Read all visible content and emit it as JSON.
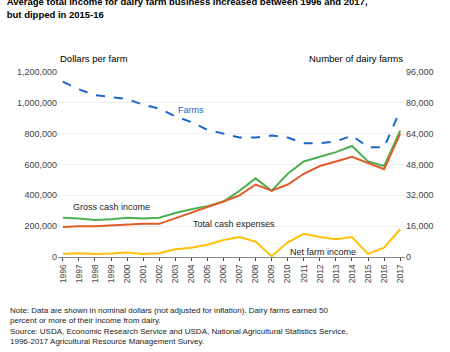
{
  "chart_data": {
    "type": "line",
    "title": "Average total income for dairy farm business increased between 1996 and 2017,",
    "subtitle": "but dipped in 2015-16",
    "ylabel": "Dollars per farm",
    "y2label": "Number of dairy farms",
    "x": [
      1996,
      1997,
      1998,
      1999,
      2000,
      2001,
      2002,
      2003,
      2004,
      2005,
      2006,
      2007,
      2008,
      2009,
      2010,
      2011,
      2012,
      2013,
      2014,
      2015,
      2016,
      2017
    ],
    "series": [
      {
        "name": "Gross cash income",
        "color": "#4CAF50",
        "line_style": "solid",
        "values": [
          255000,
          250000,
          240000,
          245000,
          255000,
          250000,
          255000,
          285000,
          310000,
          330000,
          360000,
          430000,
          510000,
          430000,
          540000,
          620000,
          650000,
          680000,
          720000,
          620000,
          590000,
          820000
        ]
      },
      {
        "name": "Total cash expenses",
        "color": "#E05C2A",
        "line_style": "solid",
        "values": [
          195000,
          200000,
          200000,
          205000,
          210000,
          215000,
          215000,
          250000,
          285000,
          320000,
          360000,
          400000,
          470000,
          430000,
          470000,
          540000,
          590000,
          620000,
          650000,
          610000,
          570000,
          800000
        ]
      },
      {
        "name": "Net farm income",
        "color": "#FFC107",
        "line_style": "solid",
        "values": [
          20000,
          25000,
          20000,
          22000,
          30000,
          20000,
          25000,
          50000,
          60000,
          80000,
          110000,
          130000,
          100000,
          5000,
          95000,
          150000,
          130000,
          115000,
          130000,
          20000,
          60000,
          180000
        ]
      },
      {
        "name": "Farms",
        "color": "#1A66CC",
        "line_style": "dashed",
        "axis": "y2",
        "values": [
          91000,
          87000,
          84000,
          83000,
          82000,
          79000,
          77000,
          73000,
          70000,
          66000,
          64000,
          62000,
          62000,
          63000,
          62000,
          59000,
          59000,
          60000,
          63000,
          57000,
          57000,
          76000
        ]
      }
    ],
    "xlim": [
      1995.7,
      2017.3
    ],
    "xticks": [
      1996,
      1997,
      1998,
      1999,
      2000,
      2001,
      2002,
      2003,
      2004,
      2005,
      2006,
      2007,
      2008,
      2009,
      2010,
      2011,
      2012,
      2013,
      2014,
      2015,
      2016,
      2017
    ],
    "ylim": [
      0,
      1200000
    ],
    "yticks": [
      0,
      {
        "value": 200000,
        "label": "200,000"
      },
      {
        "value": 400000,
        "label": "400,000"
      },
      {
        "value": 600000,
        "label": "600,000"
      },
      {
        "value": 800000,
        "label": "800,000"
      },
      {
        "value": 1000000,
        "label": "1,000,000"
      },
      {
        "value": 1200000,
        "label": "1,200,000"
      }
    ],
    "y2lim": [
      0,
      96000
    ],
    "y2ticks": [
      0,
      {
        "value": 16000,
        "label": "16,000"
      },
      {
        "value": 32000,
        "label": "32,000"
      },
      {
        "value": 48000,
        "label": "48,000"
      },
      {
        "value": 64000,
        "label": "64,000"
      },
      {
        "value": 80000,
        "label": "80,000"
      },
      {
        "value": 96000,
        "label": "96,000"
      }
    ],
    "grid": true,
    "annotations": [
      "Note: Data are shown in nominal dollars (not adjusted for inflation). Dairy farms earned 50",
      "percent or more of their income from dairy.",
      "Source: USDA, Economic Research Service and USDA, National Agricultural Statistics Service,",
      "1996-2017 Agricultural Resource Management Survey."
    ]
  }
}
